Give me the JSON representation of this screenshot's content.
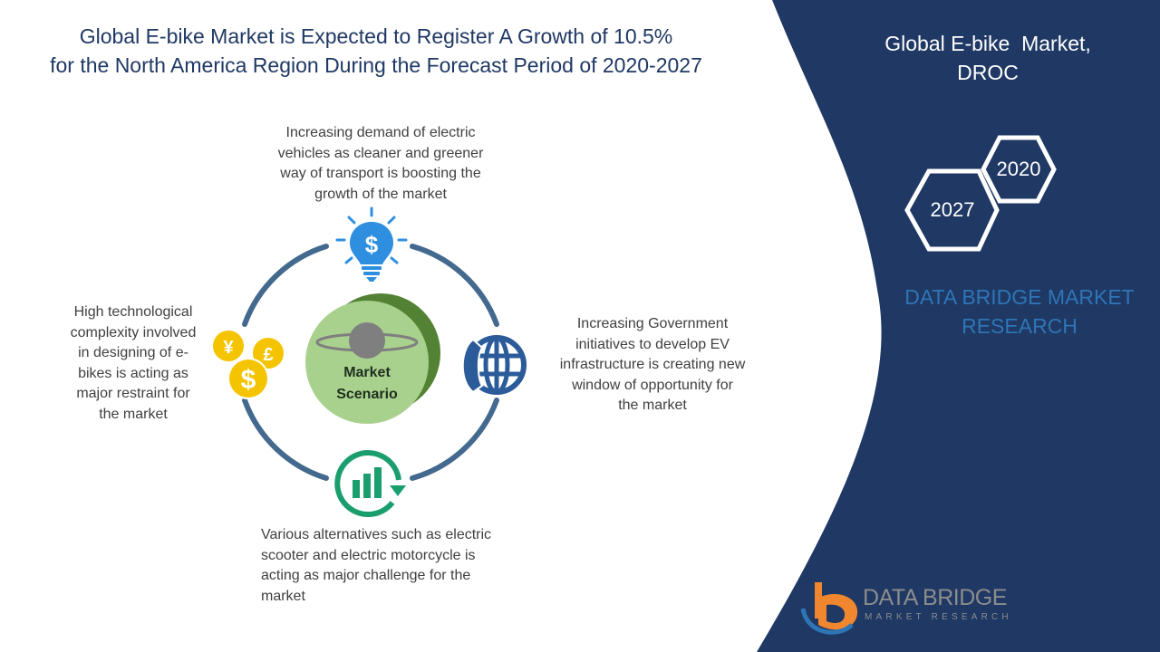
{
  "title": {
    "line1": "Global E-bike Market is Expected to Register A Growth of 10.5%",
    "line2": "for the North America Region During the Forecast Period of 2020-2027"
  },
  "center": {
    "line1": "Market",
    "line2": "Scenario"
  },
  "drivers": {
    "top": [
      "Increasing demand of electric",
      "vehicles as cleaner and greener",
      "way of transport is boosting the",
      "growth of the market"
    ],
    "right": [
      "Increasing Government",
      "initiatives to develop EV",
      "infrastructure is creating new",
      "window of opportunity for",
      "the market"
    ],
    "bottom": [
      "Various alternatives such as electric",
      "scooter and electric motorcycle is",
      "acting as major challenge for the",
      "market"
    ],
    "left": [
      "High technological",
      "complexity involved",
      "in designing of e-",
      "bikes is acting as",
      "major restraint for",
      "the market"
    ]
  },
  "side_panel": {
    "title_line1": "Global E-bike  Market,",
    "title_line2": "DROC",
    "year_start": "2020",
    "year_end": "2027",
    "brand_line1": "DATA BRIDGE MARKET",
    "brand_line2": "RESEARCH"
  },
  "logo": {
    "name": "DATA BRIDGE",
    "tagline": "MARKET RESEARCH"
  },
  "icons": {
    "top": "lightbulb-dollar-icon",
    "right": "globe-phone-icon",
    "bottom": "growth-chart-icon",
    "left": "currency-coins-icon"
  },
  "colors": {
    "title": "#1f3864",
    "panel": "#1f3864",
    "ring": "#44698f",
    "center_fill": "#a9d18e",
    "center_ring": "#548235",
    "lightbulb": "#2e8fe0",
    "globe": "#2c5b9a",
    "growth": "#1a9e6e",
    "coins": "#f5c400",
    "brand": "#2e75b6"
  }
}
